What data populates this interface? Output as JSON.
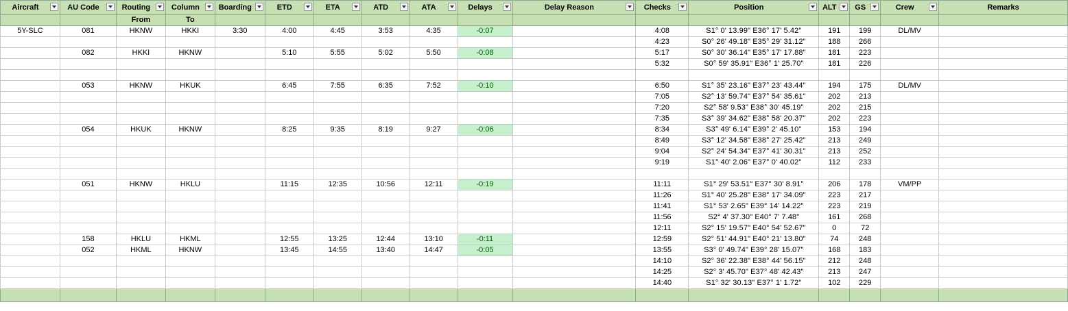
{
  "headers": [
    "Aircraft",
    "AU Code",
    "Routing",
    "Column",
    "Boarding",
    "ETD",
    "ETA",
    "ATD",
    "ATA",
    "Delays",
    "Delay Reason",
    "Checks",
    "Position",
    "ALT",
    "GS",
    "Crew",
    "Remarks"
  ],
  "subheaders": [
    "",
    "",
    "From",
    "To",
    "",
    "",
    "",
    "",
    "",
    "",
    "",
    "",
    "",
    "",
    "",
    "",
    ""
  ],
  "rows": [
    [
      "5Y-SLC",
      "081",
      "HKNW",
      "HKKI",
      "3:30",
      "4:00",
      "4:45",
      "3:53",
      "4:35",
      "-0:07",
      "",
      "4:08",
      "S1° 0' 13.99\" E36° 17' 5.42\"",
      "191",
      "199",
      "DL/MV",
      ""
    ],
    [
      "",
      "",
      "",
      "",
      "",
      "",
      "",
      "",
      "",
      "",
      "",
      "4:23",
      "S0° 26' 49.18\" E35° 29' 31.12\"",
      "188",
      "266",
      "",
      ""
    ],
    [
      "",
      "082",
      "HKKI",
      "HKNW",
      "",
      "5:10",
      "5:55",
      "5:02",
      "5:50",
      "-0:08",
      "",
      "5:17",
      "S0° 30' 36.14\" E35° 17' 17.88\"",
      "181",
      "223",
      "",
      ""
    ],
    [
      "",
      "",
      "",
      "",
      "",
      "",
      "",
      "",
      "",
      "",
      "",
      "5:32",
      "S0° 59' 35.91\" E36° 1' 25.70\"",
      "181",
      "226",
      "",
      ""
    ],
    [
      "",
      "",
      "",
      "",
      "",
      "",
      "",
      "",
      "",
      "",
      "",
      "",
      "",
      "",
      "",
      "",
      ""
    ],
    [
      "",
      "053",
      "HKNW",
      "HKUK",
      "",
      "6:45",
      "7:55",
      "6:35",
      "7:52",
      "-0:10",
      "",
      "6:50",
      "S1° 35' 23.16\" E37° 23' 43.44\"",
      "194",
      "175",
      "DL/MV",
      ""
    ],
    [
      "",
      "",
      "",
      "",
      "",
      "",
      "",
      "",
      "",
      "",
      "",
      "7:05",
      "S2° 13' 59.74\" E37° 54' 35.61\"",
      "202",
      "213",
      "",
      ""
    ],
    [
      "",
      "",
      "",
      "",
      "",
      "",
      "",
      "",
      "",
      "",
      "",
      "7:20",
      "S2° 58' 9.53\" E38° 30' 45.19\"",
      "202",
      "215",
      "",
      ""
    ],
    [
      "",
      "",
      "",
      "",
      "",
      "",
      "",
      "",
      "",
      "",
      "",
      "7:35",
      "S3° 39' 34.62\" E38° 58' 20.37\"",
      "202",
      "223",
      "",
      ""
    ],
    [
      "",
      "054",
      "HKUK",
      "HKNW",
      "",
      "8:25",
      "9:35",
      "8:19",
      "9:27",
      "-0:06",
      "",
      "8:34",
      "S3° 49' 6.14\" E39° 2' 45.10\"",
      "153",
      "194",
      "",
      ""
    ],
    [
      "",
      "",
      "",
      "",
      "",
      "",
      "",
      "",
      "",
      "",
      "",
      "8:49",
      "S3° 12' 34.58\" E38° 27' 25.42\"",
      "213",
      "249",
      "",
      ""
    ],
    [
      "",
      "",
      "",
      "",
      "",
      "",
      "",
      "",
      "",
      "",
      "",
      "9:04",
      "S2° 24' 54.34\" E37° 41' 30.31\"",
      "213",
      "252",
      "",
      ""
    ],
    [
      "",
      "",
      "",
      "",
      "",
      "",
      "",
      "",
      "",
      "",
      "",
      "9:19",
      "S1° 40' 2.06\" E37° 0' 40.02\"",
      "112",
      "233",
      "",
      ""
    ],
    [
      "",
      "",
      "",
      "",
      "",
      "",
      "",
      "",
      "",
      "",
      "",
      "",
      "",
      "",
      "",
      "",
      ""
    ],
    [
      "",
      "051",
      "HKNW",
      "HKLU",
      "",
      "11:15",
      "12:35",
      "10:56",
      "12:11",
      "-0:19",
      "",
      "11:11",
      "S1° 29' 53.51\" E37° 30' 8.91\"",
      "206",
      "178",
      "VM/PP",
      ""
    ],
    [
      "",
      "",
      "",
      "",
      "",
      "",
      "",
      "",
      "",
      "",
      "",
      "11:26",
      "S1° 40' 25.28\" E38° 17' 34.09\"",
      "223",
      "217",
      "",
      ""
    ],
    [
      "",
      "",
      "",
      "",
      "",
      "",
      "",
      "",
      "",
      "",
      "",
      "11:41",
      "S1° 53' 2.65\" E39° 14' 14.22\"",
      "223",
      "219",
      "",
      ""
    ],
    [
      "",
      "",
      "",
      "",
      "",
      "",
      "",
      "",
      "",
      "",
      "",
      "11:56",
      "S2° 4' 37.30\" E40° 7' 7.48\"",
      "161",
      "268",
      "",
      ""
    ],
    [
      "",
      "",
      "",
      "",
      "",
      "",
      "",
      "",
      "",
      "",
      "",
      "12:11",
      "S2° 15' 19.57\" E40° 54' 52.67\"",
      "0",
      "72",
      "",
      ""
    ],
    [
      "",
      "158",
      "HKLU",
      "HKML",
      "",
      "12:55",
      "13:25",
      "12:44",
      "13:10",
      "-0:11",
      "",
      "12:59",
      "S2° 51' 44.91\" E40° 21' 13.80\"",
      "74",
      "248",
      "",
      ""
    ],
    [
      "",
      "052",
      "HKML",
      "HKNW",
      "",
      "13:45",
      "14:55",
      "13:40",
      "14:47",
      "-0:05",
      "",
      "13:55",
      "S3° 0' 49.74\" E39° 28' 15.07\"",
      "168",
      "183",
      "",
      ""
    ],
    [
      "",
      "",
      "",
      "",
      "",
      "",
      "",
      "",
      "",
      "",
      "",
      "14:10",
      "S2° 36' 22.38\" E38° 44' 56.15\"",
      "212",
      "248",
      "",
      ""
    ],
    [
      "",
      "",
      "",
      "",
      "",
      "",
      "",
      "",
      "",
      "",
      "",
      "14:25",
      "S2° 3' 45.70\" E37° 48' 42.43\"",
      "213",
      "247",
      "",
      ""
    ],
    [
      "",
      "",
      "",
      "",
      "",
      "",
      "",
      "",
      "",
      "",
      "",
      "14:40",
      "S1° 32' 30.13\" E37° 1' 1.72\"",
      "102",
      "229",
      "",
      ""
    ],
    [
      "",
      "",
      "",
      "",
      "",
      "",
      "",
      "",
      "",
      "",
      "",
      "",
      "",
      "",
      "",
      "",
      ""
    ]
  ],
  "colors": {
    "header_bg": "#c6e0b4",
    "delay_bg": "#c6efce",
    "delay_text": "#006100"
  }
}
